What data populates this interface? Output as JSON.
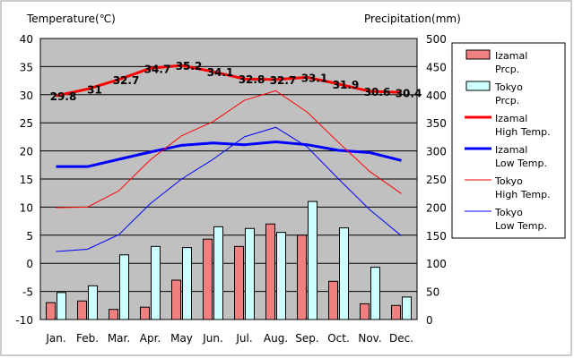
{
  "chart_data": {
    "type": "bar",
    "left_axis": {
      "title": "Temperature(℃)",
      "ylim": [
        -10,
        40
      ],
      "ticks": [
        "40",
        "35",
        "30",
        "25",
        "20",
        "15",
        "10",
        "5",
        "0",
        "-5",
        "-10"
      ]
    },
    "right_axis": {
      "title": "Precipitation(mm)",
      "ylim": [
        0,
        500
      ],
      "ticks": [
        "500",
        "450",
        "400",
        "350",
        "300",
        "250",
        "200",
        "150",
        "100",
        "50",
        "0"
      ]
    },
    "categories": [
      "Jan.",
      "Feb.",
      "Mar.",
      "Apr.",
      "May",
      "Jun.",
      "Jul.",
      "Aug.",
      "Sep.",
      "Oct.",
      "Nov.",
      "Dec."
    ],
    "grid": true,
    "legend_position": "right",
    "colors": {
      "izamal_prcp": "#f08080",
      "tokyo_prcp": "#ccffff",
      "izamal_high": "#ff0000",
      "izamal_low": "#0000ff",
      "tokyo_high": "#ff0000",
      "tokyo_low": "#0000ff",
      "plot_bg": "#c0c0c0"
    },
    "series": [
      {
        "key": "izamal_prcp",
        "name": [
          "Izamal",
          "Prcp."
        ],
        "kind": "bar",
        "axis": "right",
        "values": [
          30,
          33,
          18,
          22,
          70,
          143,
          130,
          170,
          150,
          68,
          28,
          25
        ]
      },
      {
        "key": "tokyo_prcp",
        "name": [
          "Tokyo",
          "Prcp."
        ],
        "kind": "bar",
        "axis": "right",
        "values": [
          48,
          60,
          115,
          130,
          128,
          165,
          162,
          155,
          210,
          163,
          93,
          40
        ]
      },
      {
        "key": "izamal_high",
        "name": [
          "Izamal",
          "High Temp."
        ],
        "kind": "line",
        "axis": "left",
        "values": [
          29.8,
          31,
          32.7,
          34.7,
          35.2,
          34.1,
          32.8,
          32.7,
          33.1,
          31.9,
          30.6,
          30.4
        ],
        "labels": [
          "29.8",
          "31",
          "32.7",
          "34.7",
          "35.2",
          "34.1",
          "32.8",
          "32.7",
          "33.1",
          "31.9",
          "30.6",
          "30.4"
        ]
      },
      {
        "key": "izamal_low",
        "name": [
          "Izamal",
          "Low Temp."
        ],
        "kind": "line",
        "axis": "left",
        "values": [
          17.2,
          17.2,
          18.5,
          19.8,
          21.0,
          21.4,
          21.1,
          21.6,
          21.1,
          20.1,
          19.7,
          18.3
        ]
      },
      {
        "key": "tokyo_high",
        "name": [
          "Tokyo",
          "High Temp."
        ],
        "kind": "line",
        "axis": "left",
        "values": [
          9.9,
          10.0,
          12.9,
          18.4,
          22.7,
          25.2,
          29.0,
          30.7,
          26.9,
          21.5,
          16.3,
          12.4
        ]
      },
      {
        "key": "tokyo_low",
        "name": [
          "Tokyo",
          "Low Temp."
        ],
        "kind": "line",
        "axis": "left",
        "values": [
          2.1,
          2.5,
          5.1,
          10.6,
          15.0,
          18.5,
          22.5,
          24.2,
          20.7,
          15.0,
          9.5,
          4.9
        ]
      }
    ]
  }
}
